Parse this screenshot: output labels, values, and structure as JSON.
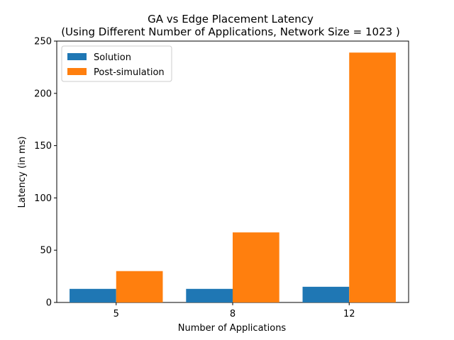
{
  "chart_data": {
    "type": "bar",
    "title": "GA vs Edge Placement Latency",
    "subtitle": "(Using Different Number of Applications, Network Size = 1023 )",
    "xlabel": "Number of Applications",
    "ylabel": "Latency (in ms)",
    "categories": [
      "5",
      "8",
      "12"
    ],
    "series": [
      {
        "name": "Solution",
        "color": "#1f77b4",
        "values": [
          13,
          13,
          15
        ]
      },
      {
        "name": "Post-simulation",
        "color": "#ff7f0e",
        "values": [
          30,
          67,
          239
        ]
      }
    ],
    "ylim": [
      0,
      250
    ],
    "yticks": [
      0,
      50,
      100,
      150,
      200,
      250
    ],
    "grid": false,
    "legend": "top-left"
  }
}
